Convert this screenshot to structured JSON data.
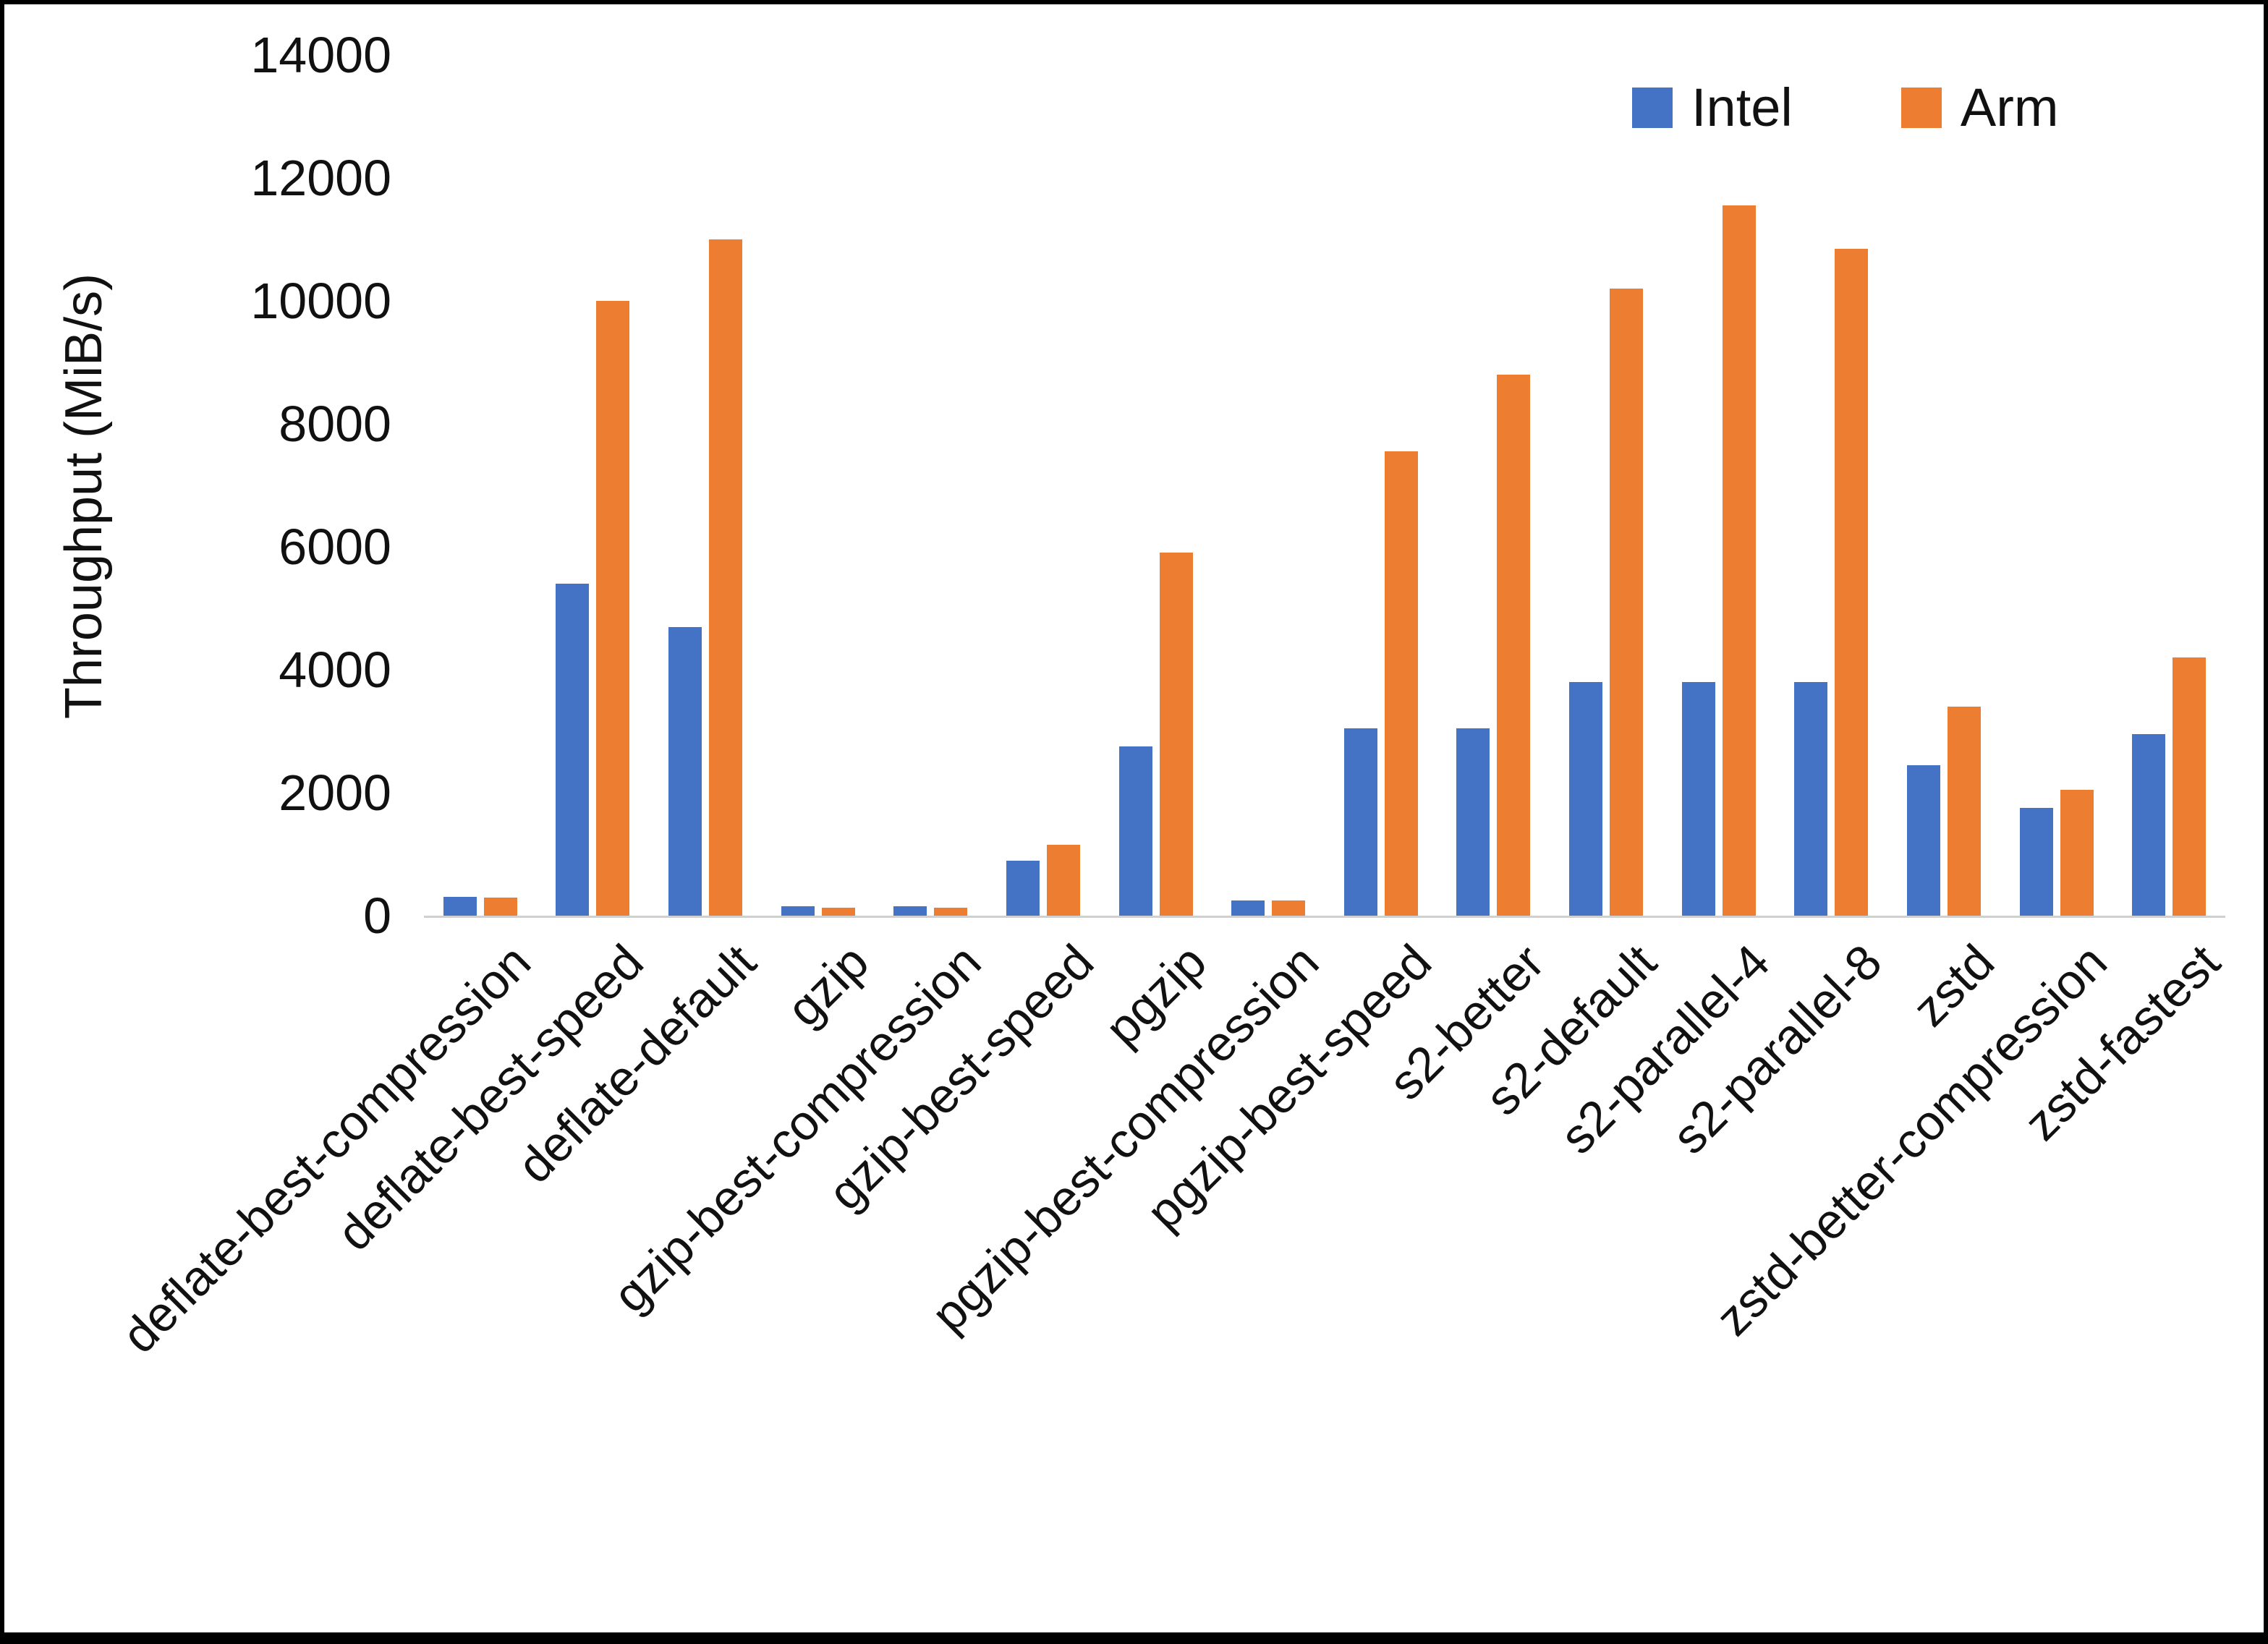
{
  "chart_data": {
    "type": "bar",
    "title": "",
    "xlabel": "",
    "ylabel": "Throughput (MiB/s)",
    "ylim": [
      0,
      14000
    ],
    "ytick_step": 2000,
    "grid": false,
    "legend_position": "top-right",
    "categories": [
      "deflate-best-compression",
      "deflate-best-speed",
      "deflate-default",
      "gzip",
      "gzip-best-compression",
      "gzip-best-speed",
      "pgzip",
      "pgzip-best-compression",
      "pgzip-best-speed",
      "s2-better",
      "s2-default",
      "s2-parallel-4",
      "s2-parallel-8",
      "zstd",
      "zstd-better-compression",
      "zstd-fastest"
    ],
    "series": [
      {
        "name": "Intel",
        "color": "#4472C4",
        "values": [
          300,
          5400,
          4700,
          150,
          150,
          900,
          2750,
          250,
          3050,
          3050,
          3800,
          3800,
          3800,
          2450,
          1750,
          2950
        ]
      },
      {
        "name": "Arm",
        "color": "#ED7D31",
        "values": [
          290,
          10000,
          11000,
          130,
          130,
          1150,
          5900,
          250,
          7550,
          8800,
          10200,
          11550,
          10850,
          3400,
          2050,
          4200
        ]
      }
    ]
  }
}
